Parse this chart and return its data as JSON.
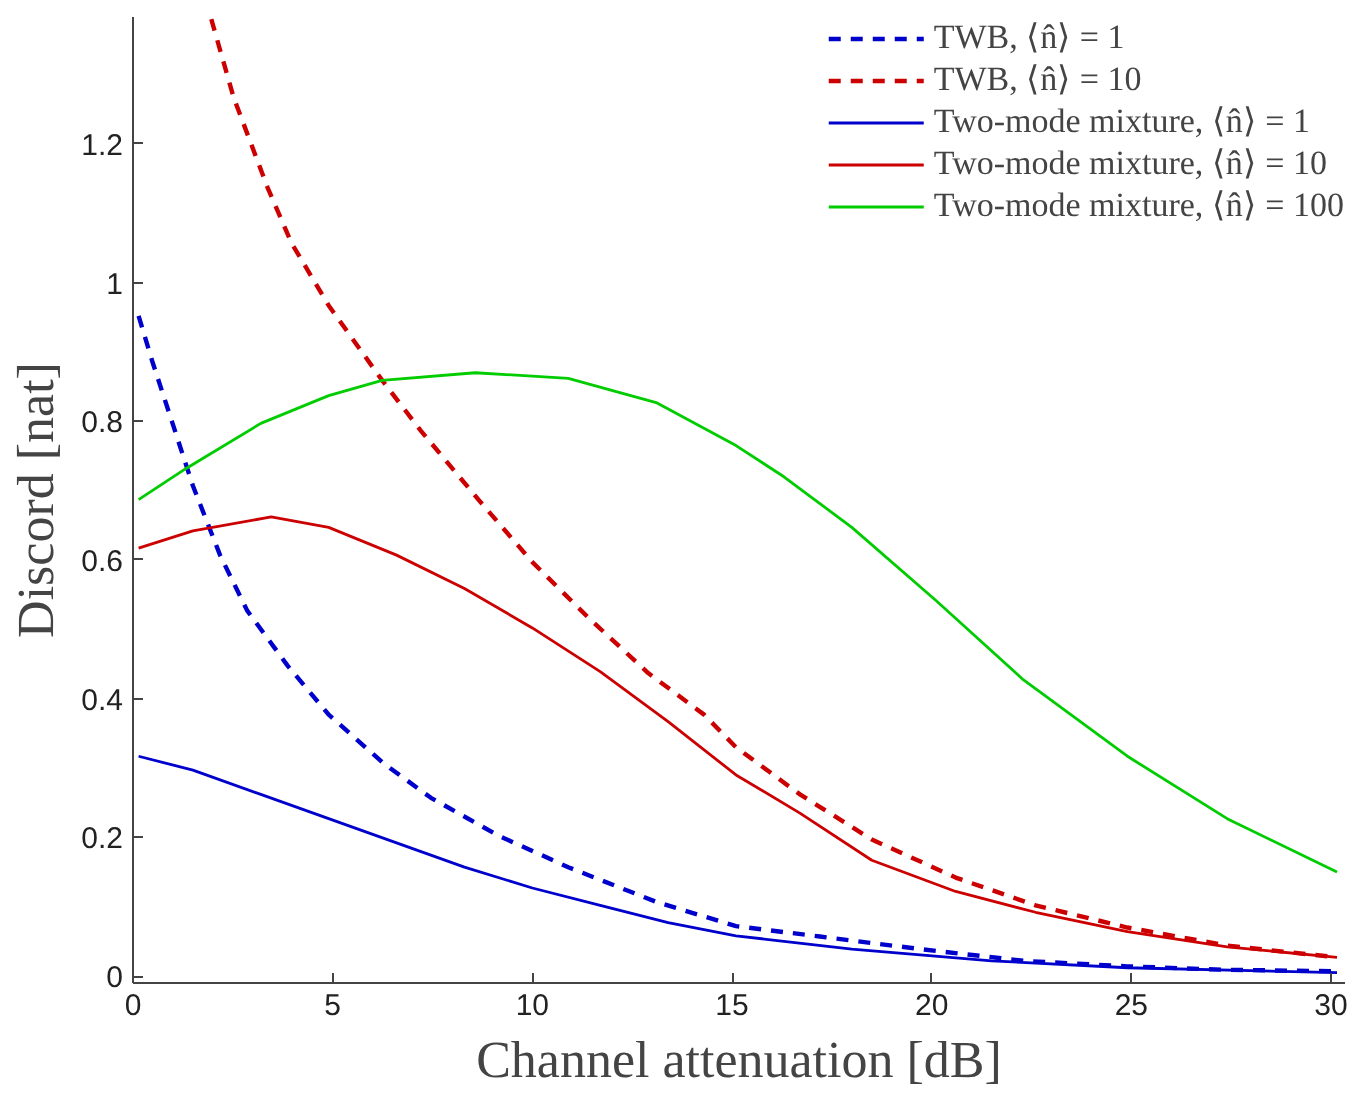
{
  "chart_data": {
    "type": "line",
    "xlabel": "Channel attenuation [dB]",
    "ylabel": "Discord [nat]",
    "xlim": [
      0,
      30.35
    ],
    "ylim": [
      -0.01,
      1.383
    ],
    "xticks": [
      0,
      5,
      10,
      15,
      20,
      25,
      30
    ],
    "yticks": [
      0,
      0.2,
      0.4,
      0.6,
      0.8,
      {
        "value": 1,
        "label": "1"
      },
      1.2
    ],
    "grid": false,
    "legend": "top right",
    "marker": "none",
    "series": [
      {
        "name": "TWB, ⟨n̂⟩ = 1",
        "color": "#0000cc",
        "line_style": "dashed",
        "x": [
          0.14,
          0.48,
          0.99,
          1.5,
          2.18,
          2.86,
          3.88,
          4.9,
          6.27,
          7.46,
          9.17,
          10.9,
          13.1,
          15.1,
          17.2,
          19.7,
          22.3,
          24.9,
          27.4,
          30.15
        ],
        "values": [
          0.952,
          0.887,
          0.797,
          0.707,
          0.607,
          0.527,
          0.447,
          0.377,
          0.307,
          0.257,
          0.202,
          0.157,
          0.107,
          0.072,
          0.057,
          0.039,
          0.022,
          0.014,
          0.009,
          0.007
        ]
      },
      {
        "name": "TWB, ⟨n̂⟩ = 10",
        "color": "#cc0000",
        "line_style": "dashed",
        "x": [
          1.96,
          2.52,
          3.37,
          3.97,
          4.9,
          6.24,
          7.2,
          8.65,
          10.0,
          11.4,
          12.9,
          14.3,
          15.1,
          16.7,
          18.5,
          20.6,
          22.6,
          24.9,
          27.4,
          30.15
        ],
        "values": [
          1.38,
          1.267,
          1.137,
          1.057,
          0.967,
          0.859,
          0.787,
          0.687,
          0.597,
          0.517,
          0.437,
          0.377,
          0.33,
          0.262,
          0.197,
          0.142,
          0.102,
          0.07,
          0.044,
          0.027
        ]
      },
      {
        "name": "Two-mode mixture, ⟨n̂⟩ = 1",
        "color": "#0000cc",
        "line_style": "solid",
        "x": [
          0.14,
          1.5,
          3.2,
          4.9,
          6.6,
          8.3,
          10.0,
          11.7,
          13.4,
          15.1,
          18.0,
          21.5,
          24.9,
          30.15
        ],
        "values": [
          0.317,
          0.297,
          0.262,
          0.227,
          0.192,
          0.157,
          0.127,
          0.102,
          0.077,
          0.058,
          0.039,
          0.022,
          0.012,
          0.005
        ]
      },
      {
        "name": "Two-mode mixture, ⟨n̂⟩ = 10",
        "color": "#cc0000",
        "line_style": "solid",
        "x": [
          0.14,
          1.5,
          3.46,
          4.9,
          6.6,
          8.3,
          10.0,
          11.7,
          13.4,
          15.1,
          16.7,
          18.5,
          20.6,
          22.6,
          24.9,
          27.4,
          30.15
        ],
        "values": [
          0.617,
          0.642,
          0.662,
          0.647,
          0.607,
          0.559,
          0.502,
          0.439,
          0.367,
          0.29,
          0.235,
          0.167,
          0.122,
          0.092,
          0.064,
          0.042,
          0.027
        ]
      },
      {
        "name": "Two-mode mixture, ⟨n̂⟩ = 100",
        "color": "#00cc00",
        "line_style": "solid",
        "x": [
          0.14,
          1.33,
          3.2,
          4.9,
          6.24,
          8.57,
          10.9,
          13.1,
          15.1,
          16.3,
          18.0,
          20.1,
          22.3,
          24.9,
          27.4,
          30.15
        ],
        "values": [
          0.687,
          0.732,
          0.797,
          0.837,
          0.859,
          0.87,
          0.862,
          0.827,
          0.765,
          0.72,
          0.647,
          0.542,
          0.427,
          0.317,
          0.227,
          0.15
        ]
      }
    ]
  }
}
